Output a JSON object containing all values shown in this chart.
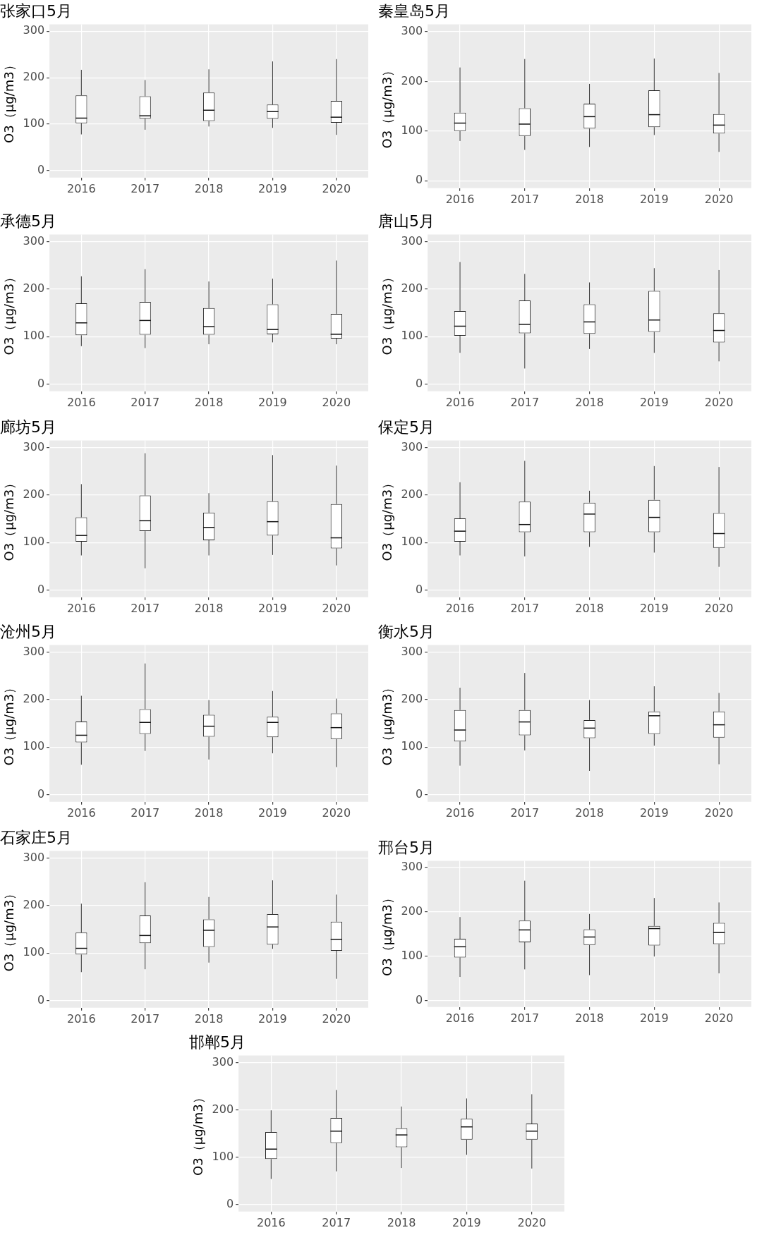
{
  "chart_data": [
    {
      "type": "box",
      "title": "张家口5月",
      "ylabel": "O3（μg/m3）",
      "categories": [
        "2016",
        "2017",
        "2018",
        "2019",
        "2020"
      ],
      "ylim": [
        -15,
        315
      ],
      "yticks": [
        0,
        100,
        200,
        300
      ],
      "grid": true,
      "boxes": [
        {
          "low": 78,
          "q1": 102,
          "median": 113,
          "q3": 162,
          "high": 217
        },
        {
          "low": 88,
          "q1": 112,
          "median": 118,
          "q3": 160,
          "high": 195
        },
        {
          "low": 95,
          "q1": 107,
          "median": 130,
          "q3": 168,
          "high": 218
        },
        {
          "low": 92,
          "q1": 112,
          "median": 127,
          "q3": 142,
          "high": 235
        },
        {
          "low": 77,
          "q1": 103,
          "median": 115,
          "q3": 150,
          "high": 240
        }
      ]
    },
    {
      "type": "box",
      "title": "秦皇岛5月",
      "ylabel": "O3（μg/m3）",
      "categories": [
        "2016",
        "2017",
        "2018",
        "2019",
        "2020"
      ],
      "ylim": [
        -15,
        315
      ],
      "yticks": [
        0,
        100,
        200,
        300
      ],
      "grid": true,
      "boxes": [
        {
          "low": 80,
          "q1": 100,
          "median": 116,
          "q3": 137,
          "high": 228
        },
        {
          "low": 62,
          "q1": 90,
          "median": 114,
          "q3": 146,
          "high": 245
        },
        {
          "low": 68,
          "q1": 105,
          "median": 129,
          "q3": 155,
          "high": 195
        },
        {
          "low": 92,
          "q1": 108,
          "median": 133,
          "q3": 182,
          "high": 246
        },
        {
          "low": 58,
          "q1": 95,
          "median": 112,
          "q3": 134,
          "high": 217
        }
      ]
    },
    {
      "type": "box",
      "title": "承德5月",
      "ylabel": "O3（μg/m3）",
      "categories": [
        "2016",
        "2017",
        "2018",
        "2019",
        "2020"
      ],
      "ylim": [
        -15,
        315
      ],
      "yticks": [
        0,
        100,
        200,
        300
      ],
      "grid": true,
      "boxes": [
        {
          "low": 80,
          "q1": 103,
          "median": 129,
          "q3": 170,
          "high": 227
        },
        {
          "low": 76,
          "q1": 104,
          "median": 134,
          "q3": 173,
          "high": 242
        },
        {
          "low": 84,
          "q1": 104,
          "median": 121,
          "q3": 160,
          "high": 216
        },
        {
          "low": 88,
          "q1": 105,
          "median": 115,
          "q3": 168,
          "high": 222
        },
        {
          "low": 84,
          "q1": 96,
          "median": 105,
          "q3": 148,
          "high": 260
        }
      ]
    },
    {
      "type": "box",
      "title": "唐山5月",
      "ylabel": "O3（μg/m3）",
      "categories": [
        "2016",
        "2017",
        "2018",
        "2019",
        "2020"
      ],
      "ylim": [
        -15,
        315
      ],
      "yticks": [
        0,
        100,
        200,
        300
      ],
      "grid": true,
      "boxes": [
        {
          "low": 66,
          "q1": 102,
          "median": 122,
          "q3": 154,
          "high": 257
        },
        {
          "low": 33,
          "q1": 107,
          "median": 126,
          "q3": 176,
          "high": 232
        },
        {
          "low": 74,
          "q1": 106,
          "median": 131,
          "q3": 168,
          "high": 214
        },
        {
          "low": 66,
          "q1": 110,
          "median": 135,
          "q3": 196,
          "high": 244
        },
        {
          "low": 48,
          "q1": 88,
          "median": 113,
          "q3": 149,
          "high": 240
        }
      ]
    },
    {
      "type": "box",
      "title": "廊坊5月",
      "ylabel": "O3（μg/m3）",
      "categories": [
        "2016",
        "2017",
        "2018",
        "2019",
        "2020"
      ],
      "ylim": [
        -15,
        315
      ],
      "yticks": [
        0,
        100,
        200,
        300
      ],
      "grid": true,
      "boxes": [
        {
          "low": 73,
          "q1": 102,
          "median": 115,
          "q3": 153,
          "high": 223
        },
        {
          "low": 46,
          "q1": 124,
          "median": 146,
          "q3": 199,
          "high": 288
        },
        {
          "low": 73,
          "q1": 105,
          "median": 132,
          "q3": 163,
          "high": 204
        },
        {
          "low": 74,
          "q1": 115,
          "median": 144,
          "q3": 187,
          "high": 284
        },
        {
          "low": 52,
          "q1": 88,
          "median": 110,
          "q3": 181,
          "high": 262
        }
      ]
    },
    {
      "type": "box",
      "title": "保定5月",
      "ylabel": "O3（μg/m3）",
      "categories": [
        "2016",
        "2017",
        "2018",
        "2019",
        "2020"
      ],
      "ylim": [
        -15,
        315
      ],
      "yticks": [
        0,
        100,
        200,
        300
      ],
      "grid": true,
      "boxes": [
        {
          "low": 73,
          "q1": 102,
          "median": 124,
          "q3": 151,
          "high": 227
        },
        {
          "low": 71,
          "q1": 122,
          "median": 138,
          "q3": 186,
          "high": 272
        },
        {
          "low": 91,
          "q1": 122,
          "median": 160,
          "q3": 184,
          "high": 209
        },
        {
          "low": 79,
          "q1": 122,
          "median": 153,
          "q3": 190,
          "high": 261
        },
        {
          "low": 49,
          "q1": 89,
          "median": 119,
          "q3": 162,
          "high": 259
        }
      ]
    },
    {
      "type": "box",
      "title": "沧州5月",
      "ylabel": "O3（μg/m3）",
      "categories": [
        "2016",
        "2017",
        "2018",
        "2019",
        "2020"
      ],
      "ylim": [
        -15,
        315
      ],
      "yticks": [
        0,
        100,
        200,
        300
      ],
      "grid": true,
      "boxes": [
        {
          "low": 63,
          "q1": 110,
          "median": 125,
          "q3": 154,
          "high": 208
        },
        {
          "low": 92,
          "q1": 128,
          "median": 152,
          "q3": 180,
          "high": 276
        },
        {
          "low": 74,
          "q1": 122,
          "median": 144,
          "q3": 168,
          "high": 199
        },
        {
          "low": 87,
          "q1": 121,
          "median": 152,
          "q3": 164,
          "high": 218
        },
        {
          "low": 58,
          "q1": 117,
          "median": 141,
          "q3": 171,
          "high": 202
        }
      ]
    },
    {
      "type": "box",
      "title": "衡水5月",
      "ylabel": "O3（μg/m3）",
      "categories": [
        "2016",
        "2017",
        "2018",
        "2019",
        "2020"
      ],
      "ylim": [
        -15,
        315
      ],
      "yticks": [
        0,
        100,
        200,
        300
      ],
      "grid": true,
      "boxes": [
        {
          "low": 61,
          "q1": 112,
          "median": 136,
          "q3": 178,
          "high": 225
        },
        {
          "low": 93,
          "q1": 125,
          "median": 153,
          "q3": 178,
          "high": 256
        },
        {
          "low": 50,
          "q1": 119,
          "median": 140,
          "q3": 157,
          "high": 199
        },
        {
          "low": 103,
          "q1": 128,
          "median": 166,
          "q3": 175,
          "high": 228
        },
        {
          "low": 64,
          "q1": 120,
          "median": 147,
          "q3": 175,
          "high": 214
        }
      ]
    },
    {
      "type": "box",
      "title": "石家庄5月",
      "ylabel": "O3（μg/m3）",
      "categories": [
        "2016",
        "2017",
        "2018",
        "2019",
        "2020"
      ],
      "ylim": [
        -15,
        315
      ],
      "yticks": [
        0,
        100,
        200,
        300
      ],
      "grid": true,
      "boxes": [
        {
          "low": 60,
          "q1": 97,
          "median": 110,
          "q3": 143,
          "high": 204
        },
        {
          "low": 66,
          "q1": 121,
          "median": 137,
          "q3": 179,
          "high": 249
        },
        {
          "low": 80,
          "q1": 113,
          "median": 148,
          "q3": 171,
          "high": 218
        },
        {
          "low": 109,
          "q1": 118,
          "median": 155,
          "q3": 182,
          "high": 253
        },
        {
          "low": 46,
          "q1": 105,
          "median": 129,
          "q3": 166,
          "high": 223
        }
      ]
    },
    {
      "type": "box",
      "title": "邢台5月",
      "ylabel": "O3（μg/m3）",
      "categories": [
        "2016",
        "2017",
        "2018",
        "2019",
        "2020"
      ],
      "ylim": [
        -15,
        315
      ],
      "yticks": [
        0,
        100,
        200,
        300
      ],
      "grid": true,
      "boxes": [
        {
          "low": 53,
          "q1": 97,
          "median": 121,
          "q3": 139,
          "high": 188
        },
        {
          "low": 70,
          "q1": 131,
          "median": 159,
          "q3": 180,
          "high": 270
        },
        {
          "low": 57,
          "q1": 125,
          "median": 143,
          "q3": 160,
          "high": 195
        },
        {
          "low": 99,
          "q1": 124,
          "median": 162,
          "q3": 168,
          "high": 231
        },
        {
          "low": 61,
          "q1": 127,
          "median": 153,
          "q3": 175,
          "high": 221
        }
      ]
    },
    {
      "type": "box",
      "title": "邯郸5月",
      "ylabel": "O3（μg/m3）",
      "categories": [
        "2016",
        "2017",
        "2018",
        "2019",
        "2020"
      ],
      "ylim": [
        -15,
        315
      ],
      "yticks": [
        0,
        100,
        200,
        300
      ],
      "grid": true,
      "boxes": [
        {
          "low": 54,
          "q1": 96,
          "median": 117,
          "q3": 153,
          "high": 199
        },
        {
          "low": 70,
          "q1": 130,
          "median": 155,
          "q3": 183,
          "high": 242
        },
        {
          "low": 77,
          "q1": 121,
          "median": 147,
          "q3": 161,
          "high": 207
        },
        {
          "low": 105,
          "q1": 137,
          "median": 164,
          "q3": 181,
          "high": 224
        },
        {
          "low": 76,
          "q1": 137,
          "median": 155,
          "q3": 171,
          "high": 233
        }
      ]
    }
  ]
}
